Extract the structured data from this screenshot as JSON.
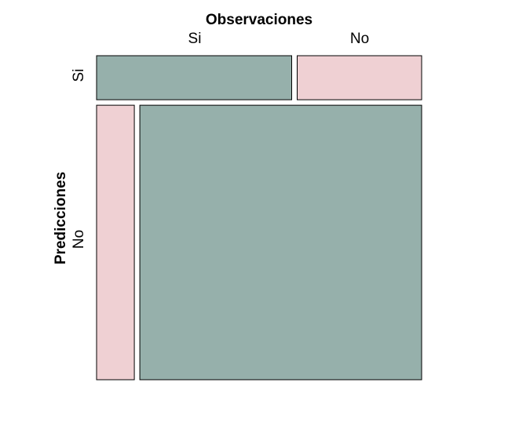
{
  "chart_data": {
    "type": "mosaic",
    "title": "Observaciones",
    "ylabel": "Predicciones",
    "x_categories": [
      "Si",
      "No"
    ],
    "y_categories": [
      "Si",
      "No"
    ],
    "x_column_proportions": {
      "Si": {
        "Si": 0.14,
        "No": 0.86
      },
      "No": {
        "Si": 0.14,
        "No": 0.86
      }
    },
    "row_proportions": {
      "Si": 0.14,
      "No": 0.86
    },
    "row_column_proportions": {
      "Si": [
        0.61,
        0.39
      ],
      "No": [
        0.12,
        0.88
      ]
    },
    "colors": {
      "match": "#96b0ab",
      "mismatch": "#efd0d3",
      "border": "#000000"
    },
    "grid": false,
    "legend": "none"
  }
}
